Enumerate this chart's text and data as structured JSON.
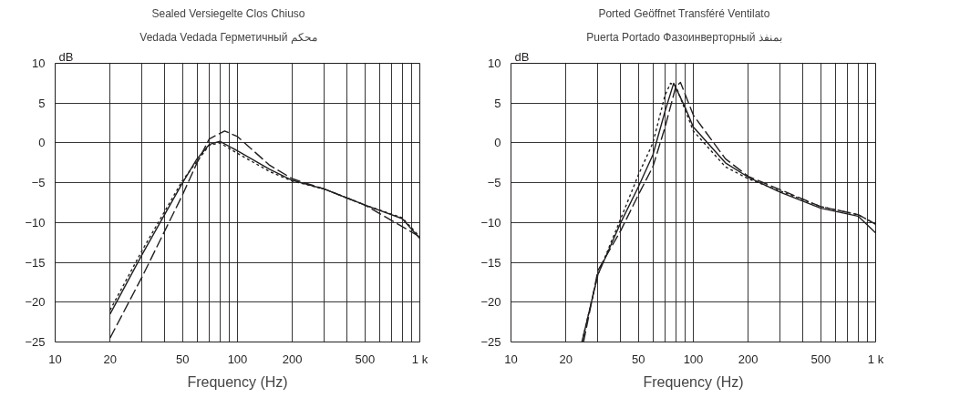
{
  "chart_data": [
    {
      "type": "line",
      "title": "Sealed   Versiegelte   Clos   Chiuso",
      "subtitle": "Vedada   Vedada   Герметичный   محكم",
      "xlabel": "Frequency (Hz)",
      "ylabel": "dB",
      "log": "x",
      "grid": true,
      "xlim": [
        10,
        1000
      ],
      "ylim": [
        -25,
        10
      ],
      "xticks": [
        10,
        20,
        {
          "value": 30,
          "label": null
        },
        {
          "value": 40,
          "label": null
        },
        50,
        {
          "value": 60,
          "label": null
        },
        {
          "value": 70,
          "label": null
        },
        {
          "value": 80,
          "label": null
        },
        {
          "value": 90,
          "label": null
        },
        100,
        200,
        {
          "value": 300,
          "label": null
        },
        {
          "value": 400,
          "label": null
        },
        500,
        {
          "value": 600,
          "label": null
        },
        {
          "value": 700,
          "label": null
        },
        {
          "value": 800,
          "label": null
        },
        {
          "value": 900,
          "label": null
        },
        {
          "value": 1000,
          "label": "1 k"
        }
      ],
      "yticks": [
        -25,
        -20,
        -15,
        -10,
        -5,
        0,
        5,
        10
      ],
      "series": [
        {
          "color": "#231f20",
          "line_style": "solid",
          "x": [
            20,
            30,
            50,
            60,
            70,
            80,
            100,
            150,
            200,
            300,
            500,
            800,
            1000
          ],
          "values": [
            -21.5,
            -14,
            -5,
            -2,
            -0.2,
            0.2,
            -1,
            -3.3,
            -4.7,
            -5.8,
            -7.8,
            -9.5,
            -12
          ]
        },
        {
          "color": "#231f20",
          "line_style": "dotted",
          "x": [
            20,
            30,
            50,
            70,
            80,
            100,
            150,
            200,
            300,
            500,
            800,
            1000
          ],
          "values": [
            -21,
            -13.5,
            -4.7,
            -0.3,
            0,
            -1.3,
            -3.6,
            -4.8,
            -5.8,
            -7.8,
            -9.4,
            -11.8
          ]
        },
        {
          "color": "#231f20",
          "line_style": "dashed",
          "x": [
            20,
            30,
            40,
            50,
            60,
            70,
            85,
            100,
            150,
            200,
            300,
            500,
            1000
          ],
          "values": [
            -24.5,
            -16.8,
            -11,
            -6.5,
            -2.5,
            0.5,
            1.5,
            0.8,
            -2.8,
            -4.5,
            -5.8,
            -7.8,
            -11.8
          ]
        }
      ]
    },
    {
      "type": "line",
      "title": "Ported   Geöffnet   Transféré   Ventilato",
      "subtitle": "Puerta   Portado   Фазоинверторный   بمنفذ",
      "xlabel": "Frequency (Hz)",
      "ylabel": "dB",
      "log": "x",
      "grid": true,
      "xlim": [
        10,
        1000
      ],
      "ylim": [
        -25,
        10
      ],
      "xticks": [
        10,
        20,
        {
          "value": 30,
          "label": null
        },
        {
          "value": 40,
          "label": null
        },
        50,
        {
          "value": 60,
          "label": null
        },
        {
          "value": 70,
          "label": null
        },
        {
          "value": 80,
          "label": null
        },
        {
          "value": 90,
          "label": null
        },
        100,
        200,
        {
          "value": 300,
          "label": null
        },
        {
          "value": 400,
          "label": null
        },
        500,
        {
          "value": 600,
          "label": null
        },
        {
          "value": 700,
          "label": null
        },
        {
          "value": 800,
          "label": null
        },
        {
          "value": 900,
          "label": null
        },
        {
          "value": 1000,
          "label": "1 k"
        }
      ],
      "yticks": [
        -25,
        -20,
        -15,
        -10,
        -5,
        0,
        5,
        10
      ],
      "series": [
        {
          "color": "#231f20",
          "line_style": "solid",
          "x": [
            24.5,
            30,
            40,
            50,
            60,
            70,
            78,
            90,
            100,
            150,
            200,
            300,
            500,
            800,
            1000
          ],
          "values": [
            -25,
            -16.5,
            -10,
            -5.5,
            -1.5,
            4,
            7.5,
            4.5,
            2,
            -2.5,
            -4.3,
            -6.2,
            -8.2,
            -9.2,
            -11.3
          ]
        },
        {
          "color": "#231f20",
          "line_style": "dotted",
          "x": [
            24.5,
            30,
            40,
            50,
            60,
            70,
            75,
            80,
            100,
            150,
            200,
            500,
            800,
            1000
          ],
          "values": [
            -25,
            -16.5,
            -9.5,
            -4,
            0,
            6,
            7.5,
            7.2,
            1.5,
            -3,
            -4.5,
            -8,
            -9,
            -10.2
          ]
        },
        {
          "color": "#231f20",
          "line_style": "dashed",
          "x": [
            25,
            30,
            40,
            50,
            60,
            70,
            80,
            85,
            100,
            150,
            200,
            500,
            800,
            1000
          ],
          "values": [
            -25,
            -16,
            -11,
            -6.5,
            -3,
            2,
            7,
            7.6,
            3.5,
            -2,
            -4.2,
            -8,
            -9,
            -10.2
          ]
        }
      ]
    }
  ]
}
